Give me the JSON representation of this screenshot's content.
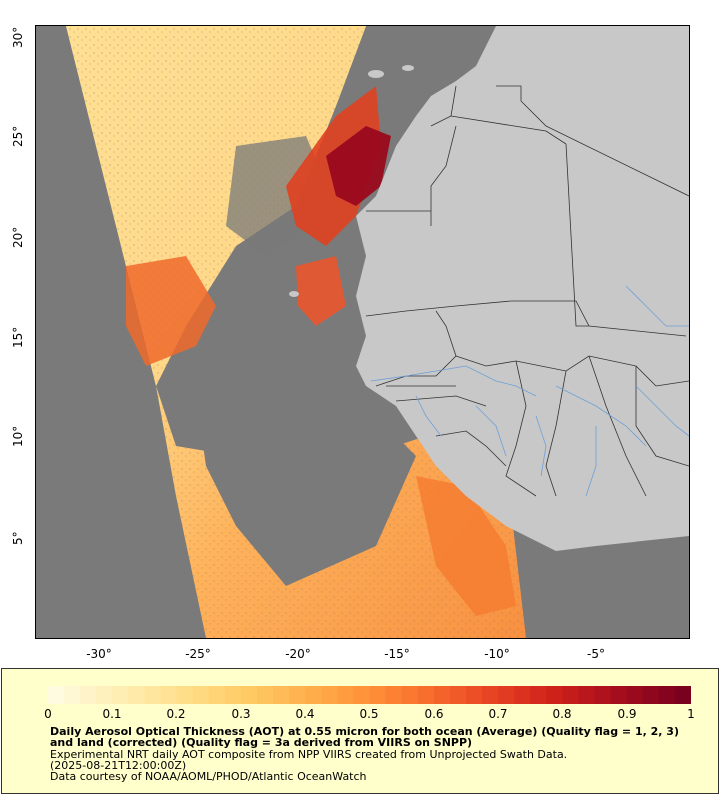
{
  "map": {
    "x_ticks": [
      "-30°",
      "-25°",
      "-20°",
      "-15°",
      "-10°",
      "-5°"
    ],
    "y_ticks": [
      "30°",
      "25°",
      "20°",
      "15°",
      "10°",
      "5°"
    ],
    "colors": {
      "no_data": "#7a7a7a",
      "land": "#c8c8c8",
      "border": "#333333",
      "river": "#6f9fd8"
    }
  },
  "legend": {
    "scale_labels": [
      "0",
      "0.1",
      "0.2",
      "0.3",
      "0.4",
      "0.5",
      "0.6",
      "0.7",
      "0.8",
      "0.9",
      "1"
    ],
    "title": "Daily Aerosol Optical Thickness (AOT) at 0.55 micron for both ocean (Average) (Quality flag = 1, 2, 3) and land (corrected) (Quality flag = 3a derived from VIIRS on SNPP)",
    "line1": "Experimental NRT daily AOT composite from NPP VIIRS created from Unprojected Swath Data.",
    "line2": "(2025-08-21T12:00:00Z)",
    "line3": "Data courtesy of NOAA/AOML/PHOD/Atlantic OceanWatch",
    "colorscale": [
      "#fffbe0",
      "#ffeeb4",
      "#ffdf8c",
      "#ffcc66",
      "#ffb04d",
      "#ff9038",
      "#f76a2c",
      "#e64122",
      "#cc1f1a",
      "#a30d1e",
      "#7a0020"
    ]
  }
}
